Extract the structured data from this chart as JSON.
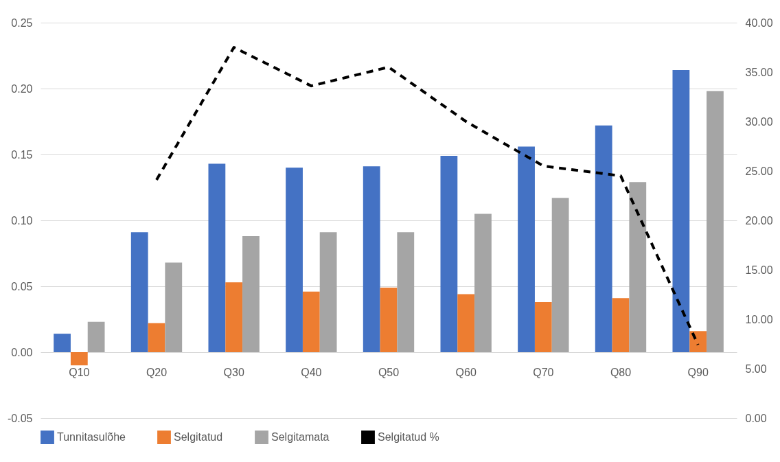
{
  "chart_data": {
    "type": "bar",
    "categories": [
      "Q10",
      "Q20",
      "Q30",
      "Q40",
      "Q50",
      "Q60",
      "Q70",
      "Q80",
      "Q90"
    ],
    "series": [
      {
        "name": "Tunnitasulõhe",
        "color": "#4472c4",
        "values": [
          0.014,
          0.091,
          0.143,
          0.14,
          0.141,
          0.149,
          0.156,
          0.172,
          0.214
        ]
      },
      {
        "name": "Selgitatud",
        "color": "#ed7d31",
        "values": [
          -0.01,
          0.022,
          0.053,
          0.046,
          0.049,
          0.044,
          0.038,
          0.041,
          0.016
        ]
      },
      {
        "name": "Selgitamata",
        "color": "#a5a5a5",
        "values": [
          0.023,
          0.068,
          0.088,
          0.091,
          0.091,
          0.105,
          0.117,
          0.129,
          0.198
        ]
      },
      {
        "name": "Selgitatud %",
        "type": "line",
        "axis": "y2",
        "color": "#000000",
        "line_style": "dashed",
        "values": [
          null,
          24.1,
          37.5,
          33.6,
          35.5,
          30.0,
          25.5,
          24.5,
          7.4
        ]
      }
    ],
    "ylim": [
      -0.05,
      0.25
    ],
    "yticks": [
      {
        "value": -0.05,
        "label": "-0.05"
      },
      {
        "value": 0,
        "label": "0.00"
      },
      {
        "value": 0.05,
        "label": "0.05"
      },
      {
        "value": 0.1,
        "label": "0.10"
      },
      {
        "value": 0.15,
        "label": "0.15"
      },
      {
        "value": 0.2,
        "label": "0.20"
      },
      {
        "value": 0.25,
        "label": "0.25"
      }
    ],
    "y2lim": [
      0,
      40
    ],
    "y2ticks": [
      {
        "value": 0,
        "label": "0.00"
      },
      {
        "value": 5,
        "label": "5.00"
      },
      {
        "value": 10,
        "label": "10.00"
      },
      {
        "value": 15,
        "label": "15.00"
      },
      {
        "value": 20,
        "label": "20.00"
      },
      {
        "value": 25,
        "label": "25.00"
      },
      {
        "value": 30,
        "label": "30.00"
      },
      {
        "value": 35,
        "label": "35.00"
      },
      {
        "value": 40,
        "label": "40.00"
      }
    ],
    "grid": "y",
    "legend": "bottom"
  }
}
